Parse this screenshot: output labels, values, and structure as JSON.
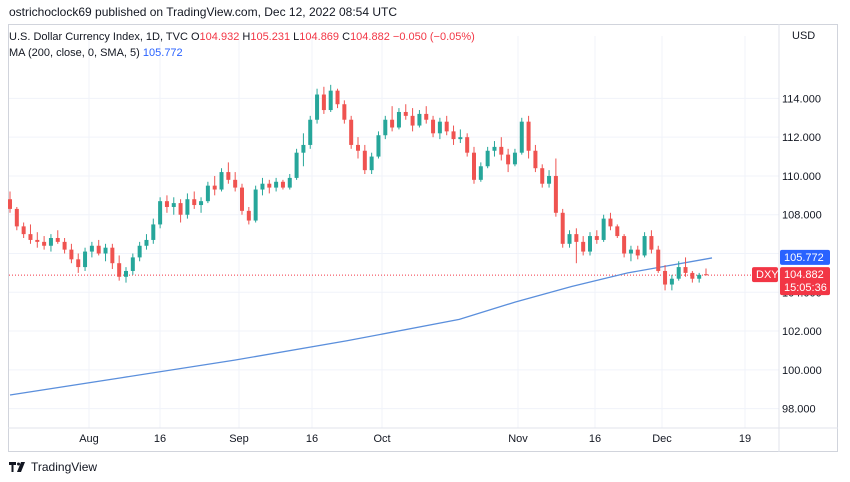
{
  "header": {
    "publish_line": "ostrichoclock69 published on TradingView.com, Dec 12, 2022 08:54 UTC"
  },
  "legend": {
    "symbol_line": "U.S. Dollar Currency Index, 1D, TVC",
    "o_label": "O",
    "o_value": "104.932",
    "h_label": "H",
    "h_value": "105.231",
    "l_label": "L",
    "l_value": "104.869",
    "c_label": "C",
    "c_value": "104.882",
    "change": "−0.050 (−0.05%)",
    "ma_line": "MA (200, close, 0, SMA, 5)",
    "ma_value": "105.772"
  },
  "currency_label": "USD",
  "footer": {
    "brand": "TradingView"
  },
  "colors": {
    "up": "#26a69a",
    "down": "#ef5350",
    "ma": "#5b8fdc",
    "ma_tag": "#2962ff",
    "price_tag": "#f23645",
    "grid": "#f0f3fa",
    "axis_text": "#131722"
  },
  "chart_data": {
    "type": "candlestick",
    "y_axis_ticks": [
      "98.000",
      "100.000",
      "102.000",
      "104.000",
      "106.000",
      "108.000",
      "110.000",
      "112.000",
      "114.000"
    ],
    "ylim": [
      97.0,
      116.6
    ],
    "x_axis_ticks": [
      "Aug",
      "16",
      "Sep",
      "16",
      "Oct",
      "Nov",
      "16",
      "Dec",
      "19"
    ],
    "symbol_tag": "DXY",
    "last_price": "104.882",
    "countdown": "15:05:36",
    "ma_tag_value": "105.772",
    "candles": [
      [
        108.8,
        109.2,
        108.1,
        108.3
      ],
      [
        108.3,
        108.4,
        107.2,
        107.4
      ],
      [
        107.4,
        107.6,
        106.8,
        107.0
      ],
      [
        107.0,
        107.5,
        106.5,
        106.7
      ],
      [
        106.7,
        107.1,
        106.3,
        106.6
      ],
      [
        106.6,
        106.9,
        106.2,
        106.4
      ],
      [
        106.4,
        107.0,
        106.1,
        106.8
      ],
      [
        106.8,
        107.2,
        106.5,
        106.6
      ],
      [
        106.6,
        106.8,
        106.0,
        106.2
      ],
      [
        106.2,
        106.5,
        105.5,
        105.7
      ],
      [
        105.7,
        106.0,
        105.0,
        105.3
      ],
      [
        105.3,
        106.3,
        105.1,
        106.1
      ],
      [
        106.1,
        106.6,
        105.8,
        106.4
      ],
      [
        106.4,
        106.7,
        105.9,
        106.0
      ],
      [
        106.0,
        106.5,
        105.6,
        106.3
      ],
      [
        106.3,
        106.5,
        105.2,
        105.5
      ],
      [
        105.5,
        105.9,
        104.6,
        104.8
      ],
      [
        104.8,
        105.3,
        104.5,
        105.1
      ],
      [
        105.1,
        106.0,
        104.9,
        105.8
      ],
      [
        105.8,
        106.6,
        105.6,
        106.4
      ],
      [
        106.4,
        107.0,
        106.2,
        106.7
      ],
      [
        106.7,
        107.8,
        106.5,
        107.5
      ],
      [
        107.5,
        108.9,
        107.3,
        108.7
      ],
      [
        108.7,
        109.0,
        108.1,
        108.4
      ],
      [
        108.4,
        108.9,
        108.0,
        108.6
      ],
      [
        108.6,
        108.8,
        107.6,
        108.0
      ],
      [
        108.0,
        109.1,
        107.8,
        108.8
      ],
      [
        108.8,
        109.2,
        108.3,
        108.5
      ],
      [
        108.5,
        108.9,
        108.1,
        108.7
      ],
      [
        108.7,
        109.7,
        108.6,
        109.5
      ],
      [
        109.5,
        110.0,
        109.0,
        109.3
      ],
      [
        109.3,
        110.4,
        109.2,
        110.2
      ],
      [
        110.2,
        110.7,
        109.6,
        109.8
      ],
      [
        109.8,
        110.2,
        109.2,
        109.4
      ],
      [
        109.4,
        109.6,
        108.0,
        108.2
      ],
      [
        108.2,
        108.4,
        107.5,
        107.7
      ],
      [
        107.7,
        109.5,
        107.6,
        109.3
      ],
      [
        109.3,
        109.9,
        109.0,
        109.6
      ],
      [
        109.6,
        109.8,
        109.1,
        109.4
      ],
      [
        109.4,
        109.9,
        109.2,
        109.7
      ],
      [
        109.7,
        109.8,
        109.3,
        109.4
      ],
      [
        109.4,
        110.1,
        109.3,
        109.9
      ],
      [
        109.9,
        111.4,
        109.8,
        111.2
      ],
      [
        111.2,
        112.2,
        110.5,
        111.6
      ],
      [
        111.6,
        113.1,
        111.4,
        112.9
      ],
      [
        112.9,
        114.5,
        112.7,
        114.2
      ],
      [
        114.2,
        114.6,
        113.2,
        113.4
      ],
      [
        113.4,
        114.7,
        113.3,
        114.4
      ],
      [
        114.4,
        114.5,
        113.5,
        113.7
      ],
      [
        113.7,
        113.9,
        112.7,
        112.9
      ],
      [
        112.9,
        113.1,
        111.4,
        111.6
      ],
      [
        111.6,
        112.0,
        110.9,
        111.3
      ],
      [
        111.3,
        111.6,
        110.1,
        110.3
      ],
      [
        110.3,
        111.2,
        110.1,
        111.0
      ],
      [
        111.0,
        112.3,
        110.9,
        112.1
      ],
      [
        112.1,
        113.1,
        111.9,
        112.9
      ],
      [
        112.9,
        113.6,
        112.3,
        112.5
      ],
      [
        112.5,
        113.5,
        112.4,
        113.3
      ],
      [
        113.3,
        113.7,
        112.9,
        113.1
      ],
      [
        113.1,
        113.5,
        112.3,
        112.6
      ],
      [
        112.6,
        113.4,
        112.5,
        113.2
      ],
      [
        113.2,
        113.6,
        112.7,
        112.9
      ],
      [
        112.9,
        113.1,
        112.0,
        112.2
      ],
      [
        112.2,
        113.0,
        111.9,
        112.8
      ],
      [
        112.8,
        113.1,
        112.1,
        112.3
      ],
      [
        112.3,
        112.6,
        111.6,
        111.9
      ],
      [
        111.9,
        112.4,
        111.7,
        112.0
      ],
      [
        112.0,
        112.2,
        111.0,
        111.2
      ],
      [
        111.2,
        111.5,
        109.6,
        109.8
      ],
      [
        109.8,
        110.7,
        109.7,
        110.5
      ],
      [
        110.5,
        111.5,
        110.4,
        111.3
      ],
      [
        111.3,
        111.8,
        111.0,
        111.5
      ],
      [
        111.5,
        112.0,
        110.8,
        111.1
      ],
      [
        111.1,
        111.4,
        110.2,
        110.6
      ],
      [
        110.6,
        111.4,
        110.5,
        111.2
      ],
      [
        111.2,
        113.0,
        111.1,
        112.8
      ],
      [
        112.8,
        113.1,
        110.9,
        111.3
      ],
      [
        111.3,
        111.6,
        110.2,
        110.4
      ],
      [
        110.4,
        110.6,
        109.4,
        109.6
      ],
      [
        109.6,
        110.3,
        109.4,
        110.0
      ],
      [
        110.0,
        110.9,
        107.9,
        108.1
      ],
      [
        108.1,
        108.3,
        106.3,
        106.5
      ],
      [
        106.5,
        107.2,
        106.3,
        107.0
      ],
      [
        107.0,
        107.3,
        105.5,
        106.6
      ],
      [
        106.6,
        106.9,
        105.9,
        106.1
      ],
      [
        106.1,
        107.1,
        105.9,
        106.9
      ],
      [
        106.9,
        107.2,
        106.5,
        106.7
      ],
      [
        106.7,
        108.0,
        106.6,
        107.8
      ],
      [
        107.8,
        108.1,
        107.2,
        107.4
      ],
      [
        107.4,
        107.5,
        106.8,
        106.9
      ],
      [
        106.9,
        107.0,
        105.8,
        106.0
      ],
      [
        106.0,
        106.4,
        105.6,
        106.2
      ],
      [
        106.2,
        106.4,
        105.7,
        105.9
      ],
      [
        105.9,
        107.1,
        105.8,
        106.9
      ],
      [
        106.9,
        107.2,
        106.0,
        106.2
      ],
      [
        106.2,
        106.4,
        105.0,
        105.1
      ],
      [
        105.1,
        105.4,
        104.1,
        104.4
      ],
      [
        104.4,
        104.9,
        104.1,
        104.7
      ],
      [
        104.7,
        105.6,
        104.6,
        105.3
      ],
      [
        105.3,
        105.8,
        104.8,
        105.0
      ],
      [
        105.0,
        105.1,
        104.5,
        104.7
      ],
      [
        104.7,
        105.0,
        104.5,
        104.9
      ],
      [
        104.93,
        105.23,
        104.87,
        104.88
      ]
    ],
    "ma_points": [
      [
        0,
        98.7
      ],
      [
        20,
        99.6
      ],
      [
        40,
        100.5
      ],
      [
        60,
        101.5
      ],
      [
        80,
        102.6
      ],
      [
        90,
        103.5
      ],
      [
        100,
        104.3
      ],
      [
        110,
        105.0
      ],
      [
        125,
        105.772
      ]
    ],
    "ma_last_index": 125
  }
}
